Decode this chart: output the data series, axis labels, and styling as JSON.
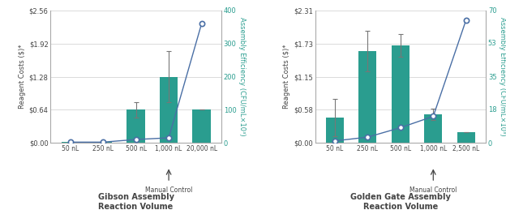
{
  "chart1": {
    "title": "Gibson Assembly\nReaction Volume",
    "categories": [
      "50 nL",
      "250 nL",
      "500 nL",
      "1,000 nL",
      "20,000 nL"
    ],
    "bar_values": [
      0.01,
      0.01,
      0.64,
      1.28,
      0.64
    ],
    "bar_errors": [
      0.0,
      0.0,
      0.15,
      0.5,
      0.0
    ],
    "line_values": [
      2,
      2,
      10,
      15,
      360
    ],
    "ylim_left": [
      0,
      2.56
    ],
    "ylim_right": [
      0,
      400
    ],
    "yticks_left": [
      0.0,
      0.64,
      1.28,
      1.92,
      2.56
    ],
    "yticks_left_labels": [
      "$0.00",
      "$0.64",
      "$1.28",
      "$1.92",
      "$2.56"
    ],
    "yticks_right": [
      0,
      100,
      200,
      300,
      400
    ],
    "manual_control_idx": 3,
    "bar_color": "#2a9d8f",
    "line_color": "#4a6fa5",
    "right_label_color": "#2a9d8f"
  },
  "chart2": {
    "title": "Golden Gate Assembly\nReaction Volume",
    "categories": [
      "50 nL",
      "250 nL",
      "500 nL",
      "1,000 nL",
      "2,500 nL"
    ],
    "bar_values": [
      0.44,
      1.6,
      1.7,
      0.5,
      0.18
    ],
    "bar_errors": [
      0.32,
      0.35,
      0.2,
      0.1,
      0.0
    ],
    "line_values": [
      1,
      3,
      8,
      14,
      65
    ],
    "ylim_left": [
      0,
      2.31
    ],
    "ylim_right": [
      0,
      70
    ],
    "yticks_left": [
      0.0,
      0.58,
      1.15,
      1.73,
      2.31
    ],
    "yticks_left_labels": [
      "$0.00",
      "$0.58",
      "$1.15",
      "$1.73",
      "$2.31"
    ],
    "yticks_right": [
      0,
      18,
      35,
      53,
      70
    ],
    "manual_control_idx": 3,
    "bar_color": "#2a9d8f",
    "line_color": "#4a6fa5",
    "right_label_color": "#2a9d8f"
  },
  "ylabel_left": "Reagent Costs ($)*",
  "ylabel_right": "Assembly Efficiency (CFU/mL×10³)",
  "bg_color": "#ffffff",
  "grid_color": "#cccccc",
  "spine_color": "#aaaaaa",
  "text_color": "#444444"
}
